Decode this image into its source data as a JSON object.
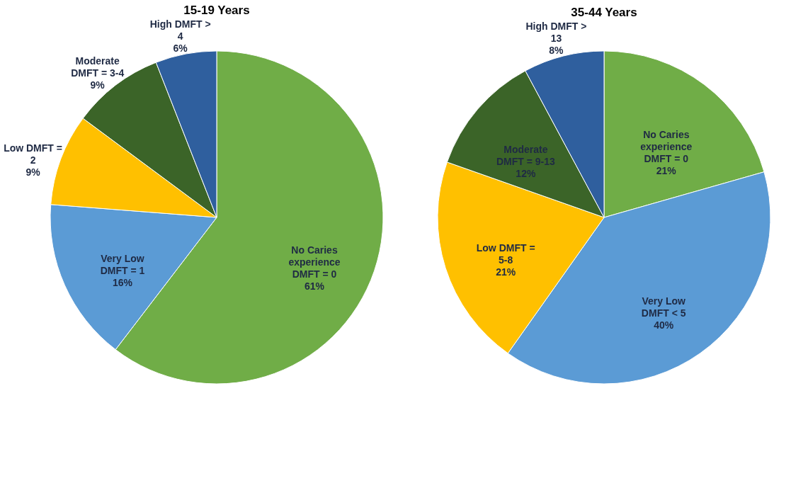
{
  "chart_data": [
    {
      "type": "pie",
      "title": "15-19 Years",
      "categories": [
        "No Caries experience DMFT = 0",
        "Very Low DMFT = 1",
        "Low DMFT = 2",
        "Moderate DMFT = 3-4",
        "High DMFT > 4"
      ],
      "values": [
        61,
        16,
        9,
        9,
        6
      ],
      "value_labels": [
        "61%",
        "16%",
        "9%",
        "9%",
        "6%"
      ],
      "colors": [
        "#70ad47",
        "#5b9bd5",
        "#ffc000",
        "#3b6428",
        "#2f5f9e"
      ],
      "legend": false
    },
    {
      "type": "pie",
      "title": "35-44 Years",
      "categories": [
        "No Caries experience DMFT = 0",
        "Very Low DMFT < 5",
        "Low DMFT = 5-8",
        "Moderate DMFT = 9-13",
        "High DMFT > 13"
      ],
      "values": [
        21,
        40,
        21,
        12,
        8
      ],
      "value_labels": [
        "21%",
        "40%",
        "21%",
        "12%",
        "8%"
      ],
      "colors": [
        "#70ad47",
        "#5b9bd5",
        "#ffc000",
        "#3b6428",
        "#2f5f9e"
      ],
      "legend": false
    }
  ]
}
